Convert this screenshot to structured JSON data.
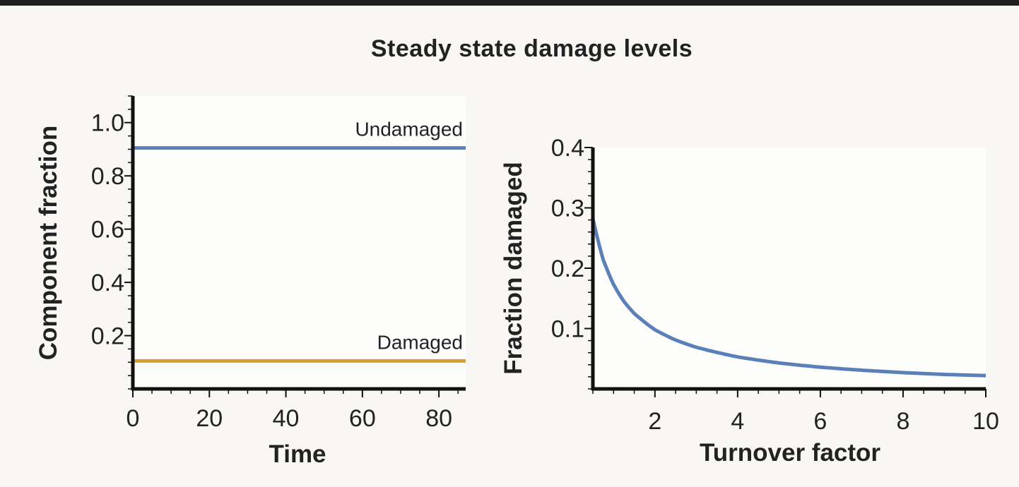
{
  "title": "Steady state damage levels",
  "colors": {
    "blue": "#5b7fb8",
    "orange": "#dc9b2f",
    "axis": "#111111",
    "plot_bg": "#fdfdfc"
  },
  "chart_data": [
    {
      "type": "line",
      "xlabel": "Time",
      "ylabel": "Component fraction",
      "xlim": [
        0,
        87
      ],
      "ylim": [
        0,
        1.1
      ],
      "xticks": [
        0,
        20,
        40,
        60,
        80
      ],
      "xtick_labels": [
        "0",
        "20",
        "40",
        "60",
        "80"
      ],
      "yticks": [
        0.2,
        0.4,
        0.6,
        0.8,
        1.0
      ],
      "ytick_labels": [
        "0.2",
        "0.4",
        "0.6",
        "0.8",
        "1.0"
      ],
      "series": [
        {
          "name": "Undamaged",
          "x": [
            0,
            87
          ],
          "values": [
            0.905,
            0.905
          ],
          "color": "#5b7fb8"
        },
        {
          "name": "Damaged",
          "x": [
            0,
            87
          ],
          "values": [
            0.105,
            0.105
          ],
          "color": "#dc9b2f"
        }
      ]
    },
    {
      "type": "line",
      "xlabel": "Turnover factor",
      "ylabel": "Fraction damaged",
      "xlim": [
        0.5,
        10
      ],
      "ylim": [
        0,
        0.4
      ],
      "xticks": [
        2,
        4,
        6,
        8,
        10
      ],
      "xtick_labels": [
        "2",
        "4",
        "6",
        "8",
        "10"
      ],
      "yticks": [
        0.1,
        0.2,
        0.3,
        0.4
      ],
      "ytick_labels": [
        "0.1",
        "0.2",
        "0.3",
        "0.4"
      ],
      "series": [
        {
          "name": "Fraction damaged",
          "x": [
            0.5,
            0.75,
            1,
            1.25,
            1.5,
            2,
            2.5,
            3,
            4,
            5,
            6,
            7,
            8,
            9,
            10
          ],
          "values": [
            0.282,
            0.214,
            0.173,
            0.145,
            0.125,
            0.098,
            0.081,
            0.069,
            0.053,
            0.043,
            0.036,
            0.031,
            0.027,
            0.024,
            0.022
          ],
          "color": "#5b7fb8"
        }
      ]
    }
  ]
}
